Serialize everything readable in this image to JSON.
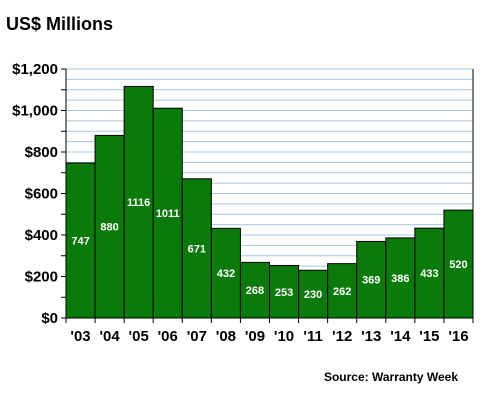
{
  "title": "US$ Millions",
  "source": "Source: Warranty Week",
  "colors": {
    "bar": "#0a7a0a",
    "bar_stroke": "#000000",
    "grid": "#a7c8e4",
    "plot_bg": "#ffffff"
  },
  "chart_data": {
    "type": "bar",
    "title": "US$ Millions",
    "xlabel": "",
    "ylabel": "",
    "categories": [
      "'03",
      "'04",
      "'05",
      "'06",
      "'07",
      "'08",
      "'09",
      "'10",
      "'11",
      "'12",
      "'13",
      "'14",
      "'15",
      "'16"
    ],
    "values": [
      747,
      880,
      1116,
      1011,
      671,
      432,
      268,
      253,
      230,
      262,
      369,
      386,
      433,
      520
    ],
    "ylim": [
      0,
      1200
    ],
    "yticks": [
      0,
      200,
      400,
      600,
      800,
      1000,
      1200
    ],
    "ytick_labels": [
      "$0",
      "$200",
      "$400",
      "$600",
      "$800",
      "$1,000",
      "$1,200"
    ],
    "grid": true,
    "data_labels": true,
    "legend": "none"
  }
}
